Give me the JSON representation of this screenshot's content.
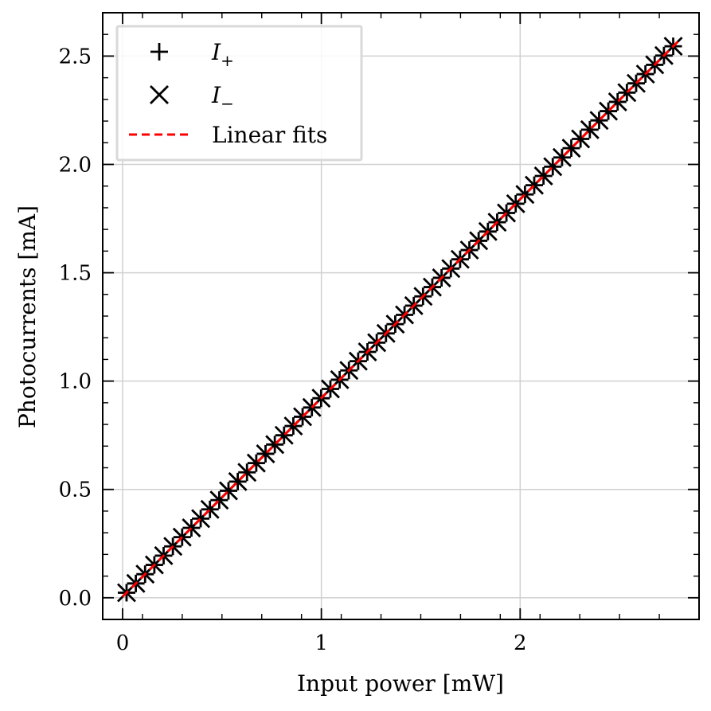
{
  "chart_data": {
    "type": "scatter",
    "xlabel": "Input power [mW]",
    "ylabel": "Photocurrents [mA]",
    "xlim": [
      -0.1,
      2.9
    ],
    "ylim": [
      -0.1,
      2.7
    ],
    "x_ticks": [
      "0",
      "1",
      "2"
    ],
    "y_ticks": [
      "0.0",
      "0.5",
      "1.0",
      "1.5",
      "2.0",
      "2.5"
    ],
    "grid": true,
    "legend_position": "top-left",
    "series": [
      {
        "name": "I+",
        "legend_base": "I",
        "legend_sub": "+",
        "marker": "plus",
        "color": "#000000",
        "slope": 0.917,
        "intercept": 0.005,
        "x_start": 0.02,
        "x_end": 2.77,
        "count": 60
      },
      {
        "name": "I−",
        "legend_base": "I",
        "legend_sub": "−",
        "marker": "x",
        "color": "#000000",
        "slope": 0.917,
        "intercept": 0.005,
        "x_start": 0.02,
        "x_end": 2.77,
        "count": 60
      },
      {
        "name": "Linear fits",
        "marker": "dashed-line",
        "color": "#ff0000",
        "slope": 0.917,
        "intercept": 0.005,
        "x_start": 0.0,
        "x_end": 2.8
      }
    ]
  }
}
